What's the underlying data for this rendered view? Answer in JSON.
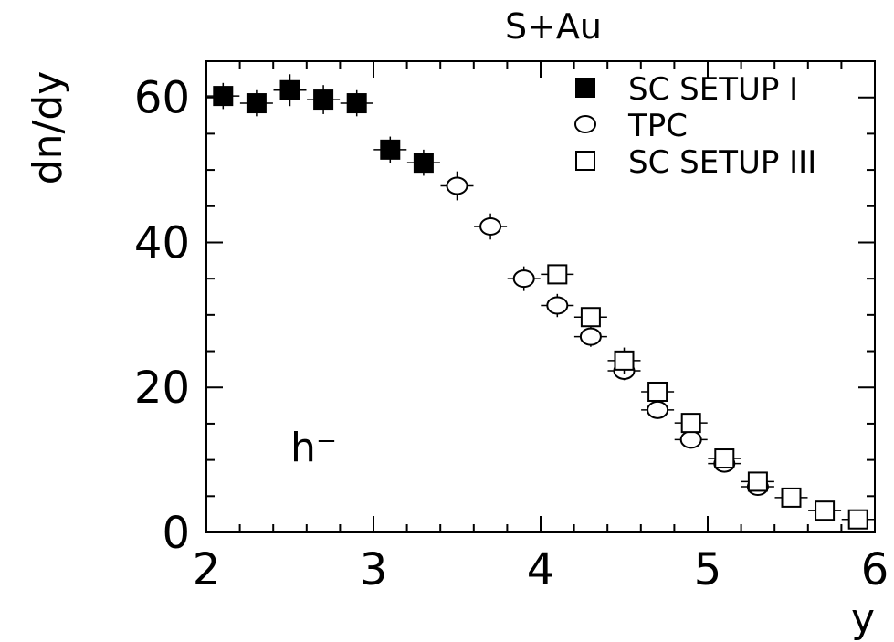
{
  "chart_data": {
    "type": "scatter",
    "title": "S+Au",
    "xlabel": "y",
    "ylabel": "dn/dy",
    "annotation": "h⁻",
    "xlim": [
      2,
      6
    ],
    "ylim": [
      0,
      65
    ],
    "x_ticks": [
      "2",
      "3",
      "4",
      "5",
      "6"
    ],
    "y_ticks": [
      "0",
      "20",
      "40",
      "60"
    ],
    "legend_position": "top-right",
    "grid": false,
    "series": [
      {
        "name": "SC SETUP I",
        "marker": "filled-square",
        "points": [
          {
            "x": 2.1,
            "y": 60.2,
            "err": 1.8
          },
          {
            "x": 2.3,
            "y": 59.2,
            "err": 1.8
          },
          {
            "x": 2.5,
            "y": 61.0,
            "err": 2.2
          },
          {
            "x": 2.7,
            "y": 59.7,
            "err": 2.0
          },
          {
            "x": 2.9,
            "y": 59.2,
            "err": 1.8
          },
          {
            "x": 3.1,
            "y": 52.8,
            "err": 1.8
          },
          {
            "x": 3.3,
            "y": 51.0,
            "err": 1.8
          }
        ]
      },
      {
        "name": "TPC",
        "marker": "open-circle",
        "points": [
          {
            "x": 3.5,
            "y": 47.8,
            "err": 2.0
          },
          {
            "x": 3.7,
            "y": 42.2,
            "err": 1.8
          },
          {
            "x": 3.9,
            "y": 35.0,
            "err": 1.7
          },
          {
            "x": 4.1,
            "y": 31.3,
            "err": 1.6
          },
          {
            "x": 4.3,
            "y": 27.0,
            "err": 1.4
          },
          {
            "x": 4.5,
            "y": 22.3,
            "err": 1.3
          },
          {
            "x": 4.7,
            "y": 16.9,
            "err": 1.2
          },
          {
            "x": 4.9,
            "y": 12.8,
            "err": 1.1
          },
          {
            "x": 5.1,
            "y": 9.5,
            "err": 1.0
          },
          {
            "x": 5.3,
            "y": 6.3,
            "err": 0.9
          }
        ]
      },
      {
        "name": "SC SETUP III",
        "marker": "open-square",
        "points": [
          {
            "x": 4.1,
            "y": 35.6,
            "err": 0
          },
          {
            "x": 4.3,
            "y": 29.7,
            "err": 0
          },
          {
            "x": 4.5,
            "y": 23.7,
            "err": 1.8
          },
          {
            "x": 4.7,
            "y": 19.4,
            "err": 0
          },
          {
            "x": 4.9,
            "y": 15.1,
            "err": 0
          },
          {
            "x": 5.1,
            "y": 10.2,
            "err": 0
          },
          {
            "x": 5.3,
            "y": 7.0,
            "err": 0
          },
          {
            "x": 5.5,
            "y": 4.8,
            "err": 0
          },
          {
            "x": 5.7,
            "y": 3.0,
            "err": 0
          },
          {
            "x": 5.9,
            "y": 1.8,
            "err": 0
          }
        ]
      }
    ]
  }
}
